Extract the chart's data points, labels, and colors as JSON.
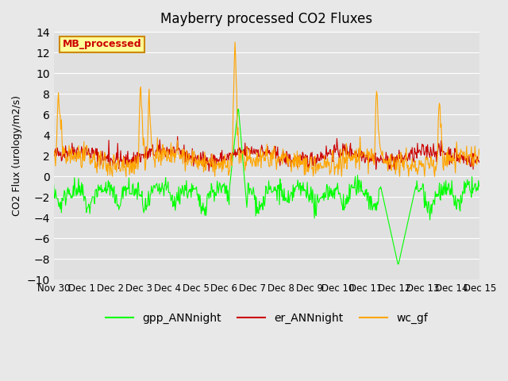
{
  "title": "Mayberry processed CO2 Fluxes",
  "ylabel": "CO2 Flux (urology/m2/s)",
  "ylim": [
    -10,
    14
  ],
  "yticks": [
    -10,
    -8,
    -6,
    -4,
    -2,
    0,
    2,
    4,
    6,
    8,
    10,
    12,
    14
  ],
  "xlabel_ticks": [
    "Nov 30",
    "Dec 1",
    "Dec 2",
    "Dec 3",
    "Dec 4",
    "Dec 5",
    "Dec 6",
    "Dec 7",
    "Dec 8",
    "Dec 9",
    "Dec 10",
    "Dec 11",
    "Dec 12",
    "Dec 13",
    "Dec 14",
    "Dec 15"
  ],
  "background_color": "#e8e8e8",
  "plot_bg_color": "#e0e0e0",
  "gpp_color": "#00ff00",
  "er_color": "#cc0000",
  "wc_color": "#ffa500",
  "legend_label": "MB_processed",
  "legend_text_color": "#cc0000",
  "legend_box_color": "#ffff99",
  "n_points": 720,
  "seed": 42
}
